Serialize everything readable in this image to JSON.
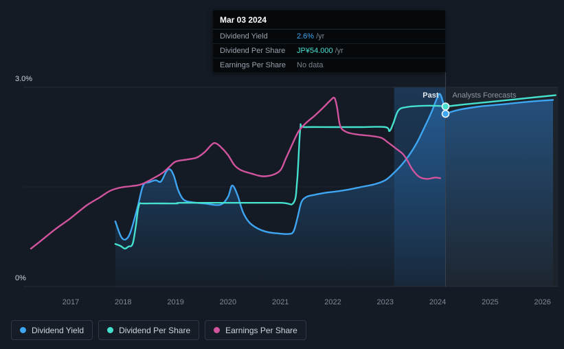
{
  "tooltip": {
    "date": "Mar 03 2024",
    "rows": [
      {
        "label": "Dividend Yield",
        "value": "2.6%",
        "unit": "/yr",
        "value_color": "#3EA6F2"
      },
      {
        "label": "Dividend Per Share",
        "value": "JP¥54.000",
        "unit": "/yr",
        "value_color": "#46E0CF"
      },
      {
        "label": "Earnings Per Share",
        "value": "No data",
        "unit": "",
        "value_color": "#7a848f"
      }
    ]
  },
  "legend": {
    "items": [
      {
        "label": "Dividend Yield",
        "color": "#3EA6F2"
      },
      {
        "label": "Dividend Per Share",
        "color": "#46E0CF"
      },
      {
        "label": "Earnings Per Share",
        "color": "#D2549E"
      }
    ]
  },
  "chart_data": {
    "type": "line",
    "x_ticks": [
      2017,
      2018,
      2019,
      2020,
      2021,
      2022,
      2023,
      2024,
      2025,
      2026
    ],
    "x_range": [
      2016.1,
      2026.3
    ],
    "y_axis": {
      "min": 0,
      "max": 3,
      "ticks": [
        {
          "value": 3,
          "label": "3.0%"
        },
        {
          "value": 0,
          "label": "0%"
        }
      ]
    },
    "forecast_divider_x": 2024.15,
    "past_highlight": {
      "from": 2023.17,
      "to": 2024.15
    },
    "annotations": {
      "past": "Past",
      "forecast": "Analysts Forecasts"
    },
    "series": [
      {
        "name": "Dividend Yield",
        "color": "#3EA6F2",
        "axis_unit": "%",
        "area_fill": true,
        "marker_at_divider": 2.6,
        "points": [
          [
            2017.85,
            0.98
          ],
          [
            2017.96,
            0.75
          ],
          [
            2018.05,
            0.71
          ],
          [
            2018.14,
            0.82
          ],
          [
            2018.27,
            1.18
          ],
          [
            2018.38,
            1.52
          ],
          [
            2018.5,
            1.57
          ],
          [
            2018.62,
            1.6
          ],
          [
            2018.72,
            1.58
          ],
          [
            2018.83,
            1.74
          ],
          [
            2018.9,
            1.76
          ],
          [
            2018.97,
            1.66
          ],
          [
            2019.05,
            1.45
          ],
          [
            2019.15,
            1.31
          ],
          [
            2019.3,
            1.27
          ],
          [
            2019.55,
            1.25
          ],
          [
            2019.85,
            1.23
          ],
          [
            2020.0,
            1.35
          ],
          [
            2020.08,
            1.52
          ],
          [
            2020.18,
            1.38
          ],
          [
            2020.28,
            1.13
          ],
          [
            2020.4,
            0.97
          ],
          [
            2020.55,
            0.88
          ],
          [
            2020.75,
            0.82
          ],
          [
            2020.95,
            0.8
          ],
          [
            2021.15,
            0.79
          ],
          [
            2021.25,
            0.83
          ],
          [
            2021.33,
            1.05
          ],
          [
            2021.4,
            1.27
          ],
          [
            2021.5,
            1.35
          ],
          [
            2021.65,
            1.38
          ],
          [
            2021.85,
            1.41
          ],
          [
            2022.05,
            1.43
          ],
          [
            2022.3,
            1.46
          ],
          [
            2022.55,
            1.5
          ],
          [
            2022.8,
            1.54
          ],
          [
            2023.0,
            1.6
          ],
          [
            2023.15,
            1.7
          ],
          [
            2023.3,
            1.82
          ],
          [
            2023.45,
            1.97
          ],
          [
            2023.6,
            2.16
          ],
          [
            2023.75,
            2.4
          ],
          [
            2023.88,
            2.62
          ],
          [
            2023.98,
            2.82
          ],
          [
            2024.04,
            2.9
          ],
          [
            2024.1,
            2.78
          ],
          [
            2024.15,
            2.6
          ]
        ],
        "forecast_points": [
          [
            2024.15,
            2.6
          ],
          [
            2024.4,
            2.66
          ],
          [
            2024.8,
            2.71
          ],
          [
            2025.2,
            2.74
          ],
          [
            2025.7,
            2.78
          ],
          [
            2026.2,
            2.81
          ]
        ]
      },
      {
        "name": "Dividend Per Share",
        "color": "#46E0CF",
        "axis_unit": "%",
        "area_fill": false,
        "marker_at_divider": 2.71,
        "points": [
          [
            2017.85,
            0.64
          ],
          [
            2017.95,
            0.61
          ],
          [
            2018.03,
            0.57
          ],
          [
            2018.1,
            0.6
          ],
          [
            2018.18,
            0.64
          ],
          [
            2018.24,
            0.9
          ],
          [
            2018.3,
            1.22
          ],
          [
            2018.4,
            1.25
          ],
          [
            2019.0,
            1.25
          ],
          [
            2019.1,
            1.26
          ],
          [
            2020.0,
            1.26
          ],
          [
            2021.0,
            1.26
          ],
          [
            2021.25,
            1.26
          ],
          [
            2021.32,
            1.6
          ],
          [
            2021.38,
            2.38
          ],
          [
            2021.45,
            2.4
          ],
          [
            2022.0,
            2.4
          ],
          [
            2022.5,
            2.4
          ],
          [
            2023.0,
            2.4
          ],
          [
            2023.08,
            2.34
          ],
          [
            2023.15,
            2.45
          ],
          [
            2023.25,
            2.65
          ],
          [
            2023.4,
            2.7
          ],
          [
            2023.7,
            2.72
          ],
          [
            2024.0,
            2.72
          ],
          [
            2024.15,
            2.71
          ]
        ],
        "forecast_points": [
          [
            2024.15,
            2.71
          ],
          [
            2024.5,
            2.74
          ],
          [
            2025.0,
            2.78
          ],
          [
            2025.5,
            2.82
          ],
          [
            2026.0,
            2.86
          ],
          [
            2026.25,
            2.88
          ]
        ]
      },
      {
        "name": "Earnings Per Share",
        "color": "#D2549E",
        "axis_unit": "%",
        "area_fill": false,
        "points": [
          [
            2016.24,
            0.57
          ],
          [
            2016.45,
            0.7
          ],
          [
            2016.7,
            0.86
          ],
          [
            2017.0,
            1.03
          ],
          [
            2017.3,
            1.22
          ],
          [
            2017.55,
            1.34
          ],
          [
            2017.75,
            1.44
          ],
          [
            2017.95,
            1.49
          ],
          [
            2018.15,
            1.51
          ],
          [
            2018.35,
            1.54
          ],
          [
            2018.6,
            1.64
          ],
          [
            2018.75,
            1.71
          ],
          [
            2018.88,
            1.8
          ],
          [
            2019.0,
            1.88
          ],
          [
            2019.2,
            1.91
          ],
          [
            2019.4,
            1.94
          ],
          [
            2019.55,
            2.02
          ],
          [
            2019.68,
            2.13
          ],
          [
            2019.75,
            2.16
          ],
          [
            2019.85,
            2.11
          ],
          [
            2020.0,
            1.98
          ],
          [
            2020.12,
            1.83
          ],
          [
            2020.25,
            1.75
          ],
          [
            2020.45,
            1.7
          ],
          [
            2020.65,
            1.66
          ],
          [
            2020.85,
            1.68
          ],
          [
            2021.0,
            1.75
          ],
          [
            2021.1,
            1.92
          ],
          [
            2021.22,
            2.13
          ],
          [
            2021.35,
            2.34
          ],
          [
            2021.5,
            2.47
          ],
          [
            2021.65,
            2.57
          ],
          [
            2021.8,
            2.68
          ],
          [
            2021.95,
            2.8
          ],
          [
            2022.03,
            2.84
          ],
          [
            2022.08,
            2.7
          ],
          [
            2022.14,
            2.42
          ],
          [
            2022.25,
            2.33
          ],
          [
            2022.45,
            2.29
          ],
          [
            2022.7,
            2.27
          ],
          [
            2022.92,
            2.24
          ],
          [
            2023.05,
            2.17
          ],
          [
            2023.2,
            2.08
          ],
          [
            2023.33,
            2.0
          ],
          [
            2023.42,
            1.9
          ],
          [
            2023.52,
            1.76
          ],
          [
            2023.65,
            1.65
          ],
          [
            2023.8,
            1.62
          ],
          [
            2023.95,
            1.64
          ],
          [
            2024.05,
            1.63
          ]
        ]
      }
    ]
  }
}
